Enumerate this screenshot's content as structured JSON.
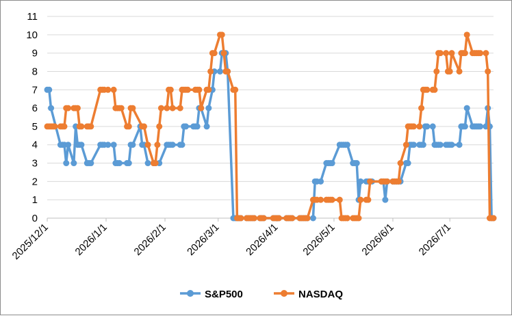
{
  "chart_data": {
    "type": "line",
    "title": "",
    "xlabel": "",
    "ylabel": "",
    "ylim": [
      0,
      11
    ],
    "yticks": [
      "0",
      "1",
      "2",
      "3",
      "4",
      "5",
      "6",
      "7",
      "8",
      "9",
      "10",
      "11"
    ],
    "xlim": [
      "2025/12/1",
      "2026/7/24"
    ],
    "xticks": [
      "2025/12/1",
      "2026/1/1",
      "2026/2/1",
      "2026/3/1",
      "2026/4/1",
      "2026/5/1",
      "2026/6/1",
      "2026/7/1"
    ],
    "grid": "horizontal",
    "legend": "bottom",
    "series": [
      {
        "name": "S&P500",
        "color": "#5B9BD5",
        "points": [
          [
            "2025/12/1",
            7
          ],
          [
            "2025/12/2",
            7
          ],
          [
            "2025/12/3",
            6
          ],
          [
            "2025/12/8",
            4
          ],
          [
            "2025/12/9",
            4
          ],
          [
            "2025/12/10",
            4
          ],
          [
            "2025/12/11",
            3
          ],
          [
            "2025/12/12",
            4
          ],
          [
            "2025/12/15",
            3
          ],
          [
            "2025/12/16",
            5
          ],
          [
            "2025/12/17",
            4
          ],
          [
            "2025/12/18",
            4
          ],
          [
            "2025/12/19",
            4
          ],
          [
            "2025/12/22",
            3
          ],
          [
            "2025/12/23",
            3
          ],
          [
            "2025/12/24",
            3
          ],
          [
            "2025/12/29",
            4
          ],
          [
            "2025/12/30",
            4
          ],
          [
            "2025/12/31",
            4
          ],
          [
            "2026/1/2",
            4
          ],
          [
            "2026/1/5",
            4
          ],
          [
            "2026/1/6",
            3
          ],
          [
            "2026/1/7",
            3
          ],
          [
            "2026/1/8",
            3
          ],
          [
            "2026/1/12",
            3
          ],
          [
            "2026/1/13",
            3
          ],
          [
            "2026/1/14",
            4
          ],
          [
            "2026/1/15",
            4
          ],
          [
            "2026/1/19",
            5
          ],
          [
            "2026/1/20",
            4
          ],
          [
            "2026/1/21",
            4
          ],
          [
            "2026/1/23",
            3
          ],
          [
            "2026/1/26",
            3
          ],
          [
            "2026/1/27",
            3
          ],
          [
            "2026/1/29",
            3
          ],
          [
            "2026/2/2",
            4
          ],
          [
            "2026/2/3",
            4
          ],
          [
            "2026/2/4",
            4
          ],
          [
            "2026/2/5",
            4
          ],
          [
            "2026/2/9",
            4
          ],
          [
            "2026/2/10",
            4
          ],
          [
            "2026/2/11",
            5
          ],
          [
            "2026/2/12",
            5
          ],
          [
            "2026/2/16",
            5
          ],
          [
            "2026/2/17",
            5
          ],
          [
            "2026/2/18",
            5
          ],
          [
            "2026/2/19",
            6
          ],
          [
            "2026/2/20",
            6
          ],
          [
            "2026/2/23",
            5
          ],
          [
            "2026/2/24",
            6
          ],
          [
            "2026/2/26",
            7
          ],
          [
            "2026/2/27",
            8
          ],
          [
            "2026/3/2",
            8
          ],
          [
            "2026/3/3",
            9
          ],
          [
            "2026/3/4",
            9
          ],
          [
            "2026/3/5",
            9
          ],
          [
            "2026/3/6",
            8
          ],
          [
            "2026/3/9",
            0
          ],
          [
            "2026/3/10",
            0
          ],
          [
            "2026/3/11",
            0
          ],
          [
            "2026/3/12",
            0
          ],
          [
            "2026/3/13",
            0
          ],
          [
            "2026/3/16",
            0
          ],
          [
            "2026/3/17",
            0
          ],
          [
            "2026/3/18",
            0
          ],
          [
            "2026/3/19",
            0
          ],
          [
            "2026/3/20",
            0
          ],
          [
            "2026/3/23",
            0
          ],
          [
            "2026/3/24",
            0
          ],
          [
            "2026/3/25",
            0
          ],
          [
            "2026/3/30",
            0
          ],
          [
            "2026/3/31",
            0
          ],
          [
            "2026/4/1",
            0
          ],
          [
            "2026/4/2",
            0
          ],
          [
            "2026/4/6",
            0
          ],
          [
            "2026/4/7",
            0
          ],
          [
            "2026/4/8",
            0
          ],
          [
            "2026/4/9",
            0
          ],
          [
            "2026/4/13",
            0
          ],
          [
            "2026/4/14",
            0
          ],
          [
            "2026/4/15",
            0
          ],
          [
            "2026/4/16",
            0
          ],
          [
            "2026/4/17",
            0
          ],
          [
            "2026/4/20",
            0
          ],
          [
            "2026/4/21",
            2
          ],
          [
            "2026/4/22",
            2
          ],
          [
            "2026/4/24",
            2
          ],
          [
            "2026/4/27",
            3
          ],
          [
            "2026/4/28",
            3
          ],
          [
            "2026/4/29",
            3
          ],
          [
            "2026/4/30",
            3
          ],
          [
            "2026/5/4",
            4
          ],
          [
            "2026/5/5",
            4
          ],
          [
            "2026/5/6",
            4
          ],
          [
            "2026/5/7",
            4
          ],
          [
            "2026/5/8",
            4
          ],
          [
            "2026/5/11",
            3
          ],
          [
            "2026/5/12",
            3
          ],
          [
            "2026/5/13",
            3
          ],
          [
            "2026/5/14",
            1
          ],
          [
            "2026/5/15",
            2
          ],
          [
            "2026/5/18",
            2
          ],
          [
            "2026/5/19",
            2
          ],
          [
            "2026/5/20",
            2
          ],
          [
            "2026/5/21",
            2
          ],
          [
            "2026/5/26",
            2
          ],
          [
            "2026/5/27",
            2
          ],
          [
            "2026/5/28",
            1
          ],
          [
            "2026/5/29",
            2
          ],
          [
            "2026/6/1",
            2
          ],
          [
            "2026/6/2",
            2
          ],
          [
            "2026/6/3",
            2
          ],
          [
            "2026/6/4",
            2
          ],
          [
            "2026/6/5",
            2
          ],
          [
            "2026/6/8",
            3
          ],
          [
            "2026/6/9",
            3
          ],
          [
            "2026/6/10",
            4
          ],
          [
            "2026/6/11",
            4
          ],
          [
            "2026/6/12",
            4
          ],
          [
            "2026/6/15",
            4
          ],
          [
            "2026/6/16",
            4
          ],
          [
            "2026/6/17",
            4
          ],
          [
            "2026/6/18",
            5
          ],
          [
            "2026/6/19",
            5
          ],
          [
            "2026/6/22",
            5
          ],
          [
            "2026/6/23",
            4
          ],
          [
            "2026/6/24",
            4
          ],
          [
            "2026/6/25",
            4
          ],
          [
            "2026/6/26",
            4
          ],
          [
            "2026/6/29",
            4
          ],
          [
            "2026/6/30",
            4
          ],
          [
            "2026/7/1",
            4
          ],
          [
            "2026/7/2",
            4
          ],
          [
            "2026/7/6",
            4
          ],
          [
            "2026/7/7",
            5
          ],
          [
            "2026/7/8",
            5
          ],
          [
            "2026/7/9",
            5
          ],
          [
            "2026/7/10",
            6
          ],
          [
            "2026/7/13",
            5
          ],
          [
            "2026/7/14",
            5
          ],
          [
            "2026/7/15",
            5
          ],
          [
            "2026/7/16",
            5
          ],
          [
            "2026/7/17",
            5
          ],
          [
            "2026/7/20",
            5
          ],
          [
            "2026/7/21",
            6
          ],
          [
            "2026/7/22",
            5
          ],
          [
            "2026/7/23",
            0
          ],
          [
            "2026/7/24",
            0
          ]
        ]
      },
      {
        "name": "NASDAQ",
        "color": "#ED7D31",
        "points": [
          [
            "2025/12/1",
            5
          ],
          [
            "2025/12/2",
            5
          ],
          [
            "2025/12/3",
            5
          ],
          [
            "2025/12/4",
            5
          ],
          [
            "2025/12/5",
            5
          ],
          [
            "2025/12/8",
            5
          ],
          [
            "2025/12/9",
            5
          ],
          [
            "2025/12/10",
            5
          ],
          [
            "2025/12/11",
            6
          ],
          [
            "2025/12/12",
            6
          ],
          [
            "2025/12/15",
            6
          ],
          [
            "2025/12/16",
            6
          ],
          [
            "2025/12/17",
            6
          ],
          [
            "2025/12/18",
            5
          ],
          [
            "2025/12/19",
            5
          ],
          [
            "2025/12/22",
            5
          ],
          [
            "2025/12/23",
            5
          ],
          [
            "2025/12/24",
            5
          ],
          [
            "2025/12/29",
            7
          ],
          [
            "2025/12/30",
            7
          ],
          [
            "2025/12/31",
            7
          ],
          [
            "2026/1/2",
            7
          ],
          [
            "2026/1/5",
            7
          ],
          [
            "2026/1/6",
            6
          ],
          [
            "2026/1/7",
            6
          ],
          [
            "2026/1/8",
            6
          ],
          [
            "2026/1/9",
            6
          ],
          [
            "2026/1/12",
            5
          ],
          [
            "2026/1/13",
            5
          ],
          [
            "2026/1/14",
            6
          ],
          [
            "2026/1/15",
            6
          ],
          [
            "2026/1/20",
            5
          ],
          [
            "2026/1/21",
            5
          ],
          [
            "2026/1/23",
            4
          ],
          [
            "2026/1/26",
            3
          ],
          [
            "2026/1/27",
            3
          ],
          [
            "2026/1/28",
            4
          ],
          [
            "2026/1/29",
            5
          ],
          [
            "2026/1/30",
            6
          ],
          [
            "2026/2/2",
            6
          ],
          [
            "2026/2/3",
            7
          ],
          [
            "2026/2/4",
            7
          ],
          [
            "2026/2/5",
            6
          ],
          [
            "2026/2/9",
            6
          ],
          [
            "2026/2/10",
            7
          ],
          [
            "2026/2/11",
            7
          ],
          [
            "2026/2/12",
            7
          ],
          [
            "2026/2/13",
            7
          ],
          [
            "2026/2/17",
            7
          ],
          [
            "2026/2/18",
            7
          ],
          [
            "2026/2/19",
            7
          ],
          [
            "2026/2/20",
            6
          ],
          [
            "2026/2/23",
            7
          ],
          [
            "2026/2/24",
            7
          ],
          [
            "2026/2/25",
            8
          ],
          [
            "2026/2/26",
            9
          ],
          [
            "2026/2/27",
            9
          ],
          [
            "2026/3/2",
            10
          ],
          [
            "2026/3/3",
            10
          ],
          [
            "2026/3/4",
            9
          ],
          [
            "2026/3/5",
            8
          ],
          [
            "2026/3/6",
            8
          ],
          [
            "2026/3/9",
            7
          ],
          [
            "2026/3/10",
            7
          ],
          [
            "2026/3/11",
            0
          ],
          [
            "2026/3/12",
            0
          ],
          [
            "2026/3/13",
            0
          ],
          [
            "2026/3/16",
            0
          ],
          [
            "2026/3/17",
            0
          ],
          [
            "2026/3/18",
            0
          ],
          [
            "2026/3/19",
            0
          ],
          [
            "2026/3/20",
            0
          ],
          [
            "2026/3/23",
            0
          ],
          [
            "2026/3/24",
            0
          ],
          [
            "2026/3/25",
            0
          ],
          [
            "2026/3/30",
            0
          ],
          [
            "2026/3/31",
            0
          ],
          [
            "2026/4/1",
            0
          ],
          [
            "2026/4/2",
            0
          ],
          [
            "2026/4/6",
            0
          ],
          [
            "2026/4/7",
            0
          ],
          [
            "2026/4/8",
            0
          ],
          [
            "2026/4/9",
            0
          ],
          [
            "2026/4/13",
            0
          ],
          [
            "2026/4/14",
            0
          ],
          [
            "2026/4/15",
            0
          ],
          [
            "2026/4/16",
            0
          ],
          [
            "2026/4/17",
            0
          ],
          [
            "2026/4/20",
            1
          ],
          [
            "2026/4/21",
            1
          ],
          [
            "2026/4/22",
            1
          ],
          [
            "2026/4/24",
            1
          ],
          [
            "2026/4/27",
            1
          ],
          [
            "2026/4/28",
            1
          ],
          [
            "2026/4/29",
            1
          ],
          [
            "2026/4/30",
            1
          ],
          [
            "2026/5/4",
            1
          ],
          [
            "2026/5/5",
            0
          ],
          [
            "2026/5/6",
            0
          ],
          [
            "2026/5/7",
            0
          ],
          [
            "2026/5/8",
            0
          ],
          [
            "2026/5/11",
            0
          ],
          [
            "2026/5/12",
            0
          ],
          [
            "2026/5/13",
            0
          ],
          [
            "2026/5/14",
            0
          ],
          [
            "2026/5/15",
            1
          ],
          [
            "2026/5/18",
            1
          ],
          [
            "2026/5/19",
            1
          ],
          [
            "2026/5/20",
            2
          ],
          [
            "2026/5/26",
            2
          ],
          [
            "2026/5/27",
            2
          ],
          [
            "2026/5/28",
            2
          ],
          [
            "2026/5/29",
            2
          ],
          [
            "2026/6/1",
            2
          ],
          [
            "2026/6/2",
            2
          ],
          [
            "2026/6/3",
            2
          ],
          [
            "2026/6/4",
            2
          ],
          [
            "2026/6/5",
            3
          ],
          [
            "2026/6/8",
            4
          ],
          [
            "2026/6/9",
            5
          ],
          [
            "2026/6/10",
            5
          ],
          [
            "2026/6/11",
            5
          ],
          [
            "2026/6/12",
            5
          ],
          [
            "2026/6/15",
            5
          ],
          [
            "2026/6/16",
            6
          ],
          [
            "2026/6/17",
            7
          ],
          [
            "2026/6/18",
            7
          ],
          [
            "2026/6/19",
            7
          ],
          [
            "2026/6/22",
            7
          ],
          [
            "2026/6/23",
            7
          ],
          [
            "2026/6/24",
            8
          ],
          [
            "2026/6/25",
            9
          ],
          [
            "2026/6/26",
            9
          ],
          [
            "2026/6/29",
            9
          ],
          [
            "2026/6/30",
            8
          ],
          [
            "2026/7/1",
            8
          ],
          [
            "2026/7/2",
            9
          ],
          [
            "2026/7/6",
            8
          ],
          [
            "2026/7/7",
            9
          ],
          [
            "2026/7/8",
            9
          ],
          [
            "2026/7/9",
            9
          ],
          [
            "2026/7/10",
            10
          ],
          [
            "2026/7/13",
            9
          ],
          [
            "2026/7/14",
            9
          ],
          [
            "2026/7/15",
            9
          ],
          [
            "2026/7/16",
            9
          ],
          [
            "2026/7/17",
            9
          ],
          [
            "2026/7/20",
            9
          ],
          [
            "2026/7/21",
            8
          ],
          [
            "2026/7/22",
            0
          ],
          [
            "2026/7/23",
            0
          ],
          [
            "2026/7/24",
            0
          ]
        ]
      }
    ]
  }
}
